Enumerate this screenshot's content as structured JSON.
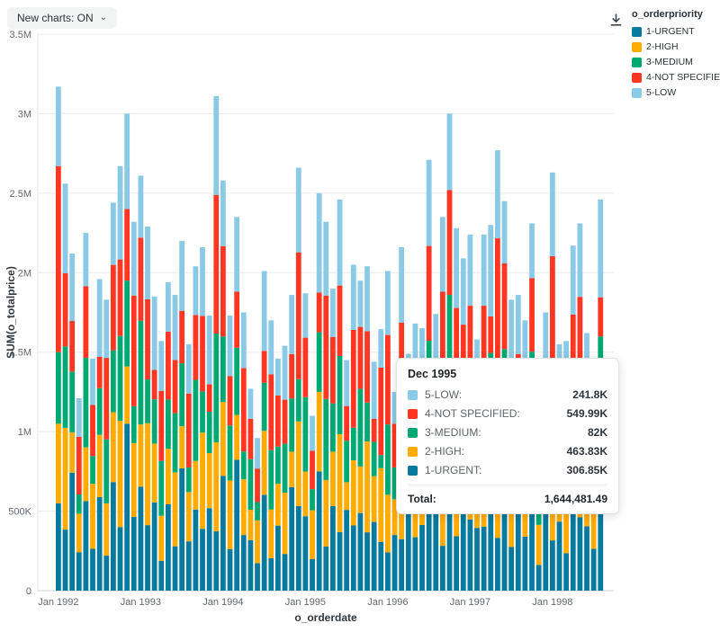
{
  "toolbar": {
    "new_charts_label": "New charts: ON",
    "chevron": "⌄"
  },
  "icons": {
    "download": "arrow-down-to-line",
    "chevron_down": "chevron-down"
  },
  "legend": {
    "title": "o_orderpriority",
    "items": [
      {
        "label": "1-URGENT",
        "color": "#077A9D"
      },
      {
        "label": "2-HIGH",
        "color": "#FFAB00"
      },
      {
        "label": "3-MEDIUM",
        "color": "#00A972"
      },
      {
        "label": "4-NOT SPECIFIED",
        "color": "#FF3621"
      },
      {
        "label": "5-LOW",
        "color": "#8BCAE7"
      }
    ]
  },
  "tooltip": {
    "title": "Dec 1995",
    "rows": [
      {
        "label": "5-LOW:",
        "value": "241.8K",
        "color": "#8BCAE7"
      },
      {
        "label": "4-NOT SPECIFIED:",
        "value": "549.99K",
        "color": "#FF3621"
      },
      {
        "label": "3-MEDIUM:",
        "value": "82K",
        "color": "#00A972"
      },
      {
        "label": "2-HIGH:",
        "value": "463.83K",
        "color": "#FFAB00"
      },
      {
        "label": "1-URGENT:",
        "value": "306.85K",
        "color": "#077A9D"
      }
    ],
    "total_label": "Total:",
    "total_value": "1,644,481.49"
  },
  "chart_data": {
    "type": "bar",
    "stacked": true,
    "title": "",
    "xlabel": "o_orderdate",
    "ylabel": "SUM(o_totalprice)",
    "unit": "K",
    "ylim": [
      0,
      3500
    ],
    "grid": true,
    "legend_position": "top-right",
    "y_ticks": [
      "0",
      "500K",
      "1M",
      "1.5M",
      "2M",
      "2.5M",
      "3M",
      "3.5M"
    ],
    "x_tick_labels": [
      "Jan 1992",
      "Jan 1993",
      "Jan 1994",
      "Jan 1995",
      "Jan 1996",
      "Jan 1997",
      "Jan 1998"
    ],
    "categories": [
      "Jan 1992",
      "Feb 1992",
      "Mar 1992",
      "Apr 1992",
      "May 1992",
      "Jun 1992",
      "Jul 1992",
      "Aug 1992",
      "Sep 1992",
      "Oct 1992",
      "Nov 1992",
      "Dec 1992",
      "Jan 1993",
      "Feb 1993",
      "Mar 1993",
      "Apr 1993",
      "May 1993",
      "Jun 1993",
      "Jul 1993",
      "Aug 1993",
      "Sep 1993",
      "Oct 1993",
      "Nov 1993",
      "Dec 1993",
      "Jan 1994",
      "Feb 1994",
      "Mar 1994",
      "Apr 1994",
      "May 1994",
      "Jun 1994",
      "Jul 1994",
      "Aug 1994",
      "Sep 1994",
      "Oct 1994",
      "Nov 1994",
      "Dec 1994",
      "Jan 1995",
      "Feb 1995",
      "Mar 1995",
      "Apr 1995",
      "May 1995",
      "Jun 1995",
      "Jul 1995",
      "Aug 1995",
      "Sep 1995",
      "Oct 1995",
      "Nov 1995",
      "Dec 1995",
      "Jan 1996",
      "Feb 1996",
      "Mar 1996",
      "Apr 1996",
      "May 1996",
      "Jun 1996",
      "Jul 1996",
      "Aug 1996",
      "Sep 1996",
      "Oct 1996",
      "Nov 1996",
      "Dec 1996",
      "Jan 1997",
      "Feb 1997",
      "Mar 1997",
      "Apr 1997",
      "May 1997",
      "Jun 1997",
      "Jul 1997",
      "Aug 1997",
      "Sep 1997",
      "Oct 1997",
      "Nov 1997",
      "Dec 1997",
      "Jan 1998",
      "Feb 1998",
      "Mar 1998",
      "Apr 1998",
      "May 1998",
      "Jun 1998",
      "Jul 1998",
      "Aug 1998"
    ],
    "series": [
      {
        "name": "1-URGENT",
        "color": "#077A9D",
        "values": [
          550,
          384,
          742,
          242,
          563,
          263,
          588,
          220,
          683,
          400,
          1050,
          464,
          653,
          412,
          555,
          188,
          543,
          279,
          770,
          310,
          510,
          389,
          519,
          373,
          722,
          260,
          823,
          350,
          318,
          173,
          603,
          204,
          409,
          231,
          651,
          532,
          468,
          198,
          750,
          278,
          532,
          369,
          508,
          410,
          488,
          367,
          432,
          306.85,
          241,
          350,
          324,
          522,
          336,
          413,
          488,
          522,
          282,
          840,
          342,
          732,
          448,
          395,
          403,
          690,
          332,
          686,
          275,
          651,
          340,
          578,
          162,
          525,
          316,
          434,
          236,
          760,
          462,
          405,
          263,
          738
        ]
      },
      {
        "name": "2-HIGH",
        "color": "#FFAB00",
        "values": [
          500,
          640,
          254,
          242,
          338,
          409,
          392,
          329,
          439,
          668,
          360,
          464,
          392,
          641,
          370,
          283,
          349,
          465,
          264,
          310,
          306,
          605,
          346,
          560,
          464,
          433,
          282,
          350,
          191,
          269,
          402,
          306,
          263,
          385,
          223,
          532,
          281,
          308,
          500,
          418,
          342,
          615,
          174,
          410,
          293,
          571,
          288,
          463.83,
          362,
          225,
          540,
          179,
          336,
          248,
          759,
          348,
          423,
          540,
          570,
          251,
          448,
          237,
          627,
          460,
          499,
          441,
          458,
          223,
          340,
          347,
          252,
          350,
          473,
          279,
          393,
          260,
          462,
          243,
          409,
          492
        ]
      },
      {
        "name": "3-MEDIUM",
        "color": "#00A972",
        "values": [
          450,
          512,
          382,
          121,
          563,
          175,
          294,
          403,
          390,
          534,
          540,
          232,
          653,
          275,
          278,
          345,
          310,
          372,
          396,
          155,
          510,
          259,
          260,
          684,
          413,
          346,
          423,
          175,
          318,
          115,
          302,
          374,
          234,
          308,
          335,
          266,
          468,
          132,
          375,
          510,
          304,
          492,
          261,
          205,
          488,
          245,
          216,
          82,
          442,
          200,
          432,
          268,
          168,
          413,
          325,
          261,
          517,
          480,
          456,
          376,
          224,
          395,
          269,
          345,
          609,
          392,
          366,
          335,
          170,
          578,
          108,
          263,
          579,
          248,
          314,
          391,
          231,
          405,
          175,
          369
        ]
      },
      {
        "name": "4-NOT SPECIFIED",
        "color": "#FF3621",
        "values": [
          1170,
          461,
          318,
          363,
          450,
          321,
          196,
          512,
          537,
          481,
          450,
          696,
          522,
          504,
          185,
          440,
          427,
          335,
          330,
          465,
          408,
          475,
          173,
          871,
          568,
          311,
          353,
          525,
          254,
          211,
          201,
          476,
          321,
          277,
          279,
          798,
          374,
          242,
          250,
          650,
          418,
          443,
          218,
          615,
          390,
          449,
          144,
          549.99,
          563,
          275,
          389,
          224,
          504,
          330,
          596,
          174,
          658,
          660,
          410,
          314,
          672,
          316,
          493,
          230,
          776,
          539,
          329,
          279,
          510,
          462,
          198,
          175,
          736,
          341,
          283,
          326,
          693,
          324,
          321,
          246
        ]
      },
      {
        "name": "5-LOW",
        "color": "#8BCAE7",
        "values": [
          500,
          563,
          424,
          242,
          336,
          292,
          490,
          366,
          391,
          587,
          600,
          464,
          390,
          458,
          462,
          314,
          311,
          409,
          440,
          310,
          306,
          432,
          432,
          622,
          413,
          380,
          469,
          350,
          189,
          192,
          502,
          340,
          233,
          339,
          372,
          532,
          279,
          220,
          625,
          464,
          304,
          541,
          289,
          410,
          291,
          408,
          360,
          241.8,
          402,
          200,
          475,
          297,
          336,
          246,
          542,
          435,
          470,
          480,
          502,
          417,
          448,
          237,
          448,
          575,
          554,
          392,
          402,
          372,
          340,
          345,
          180,
          437,
          526,
          248,
          344,
          433,
          462,
          243,
          292,
          615
        ]
      }
    ]
  }
}
